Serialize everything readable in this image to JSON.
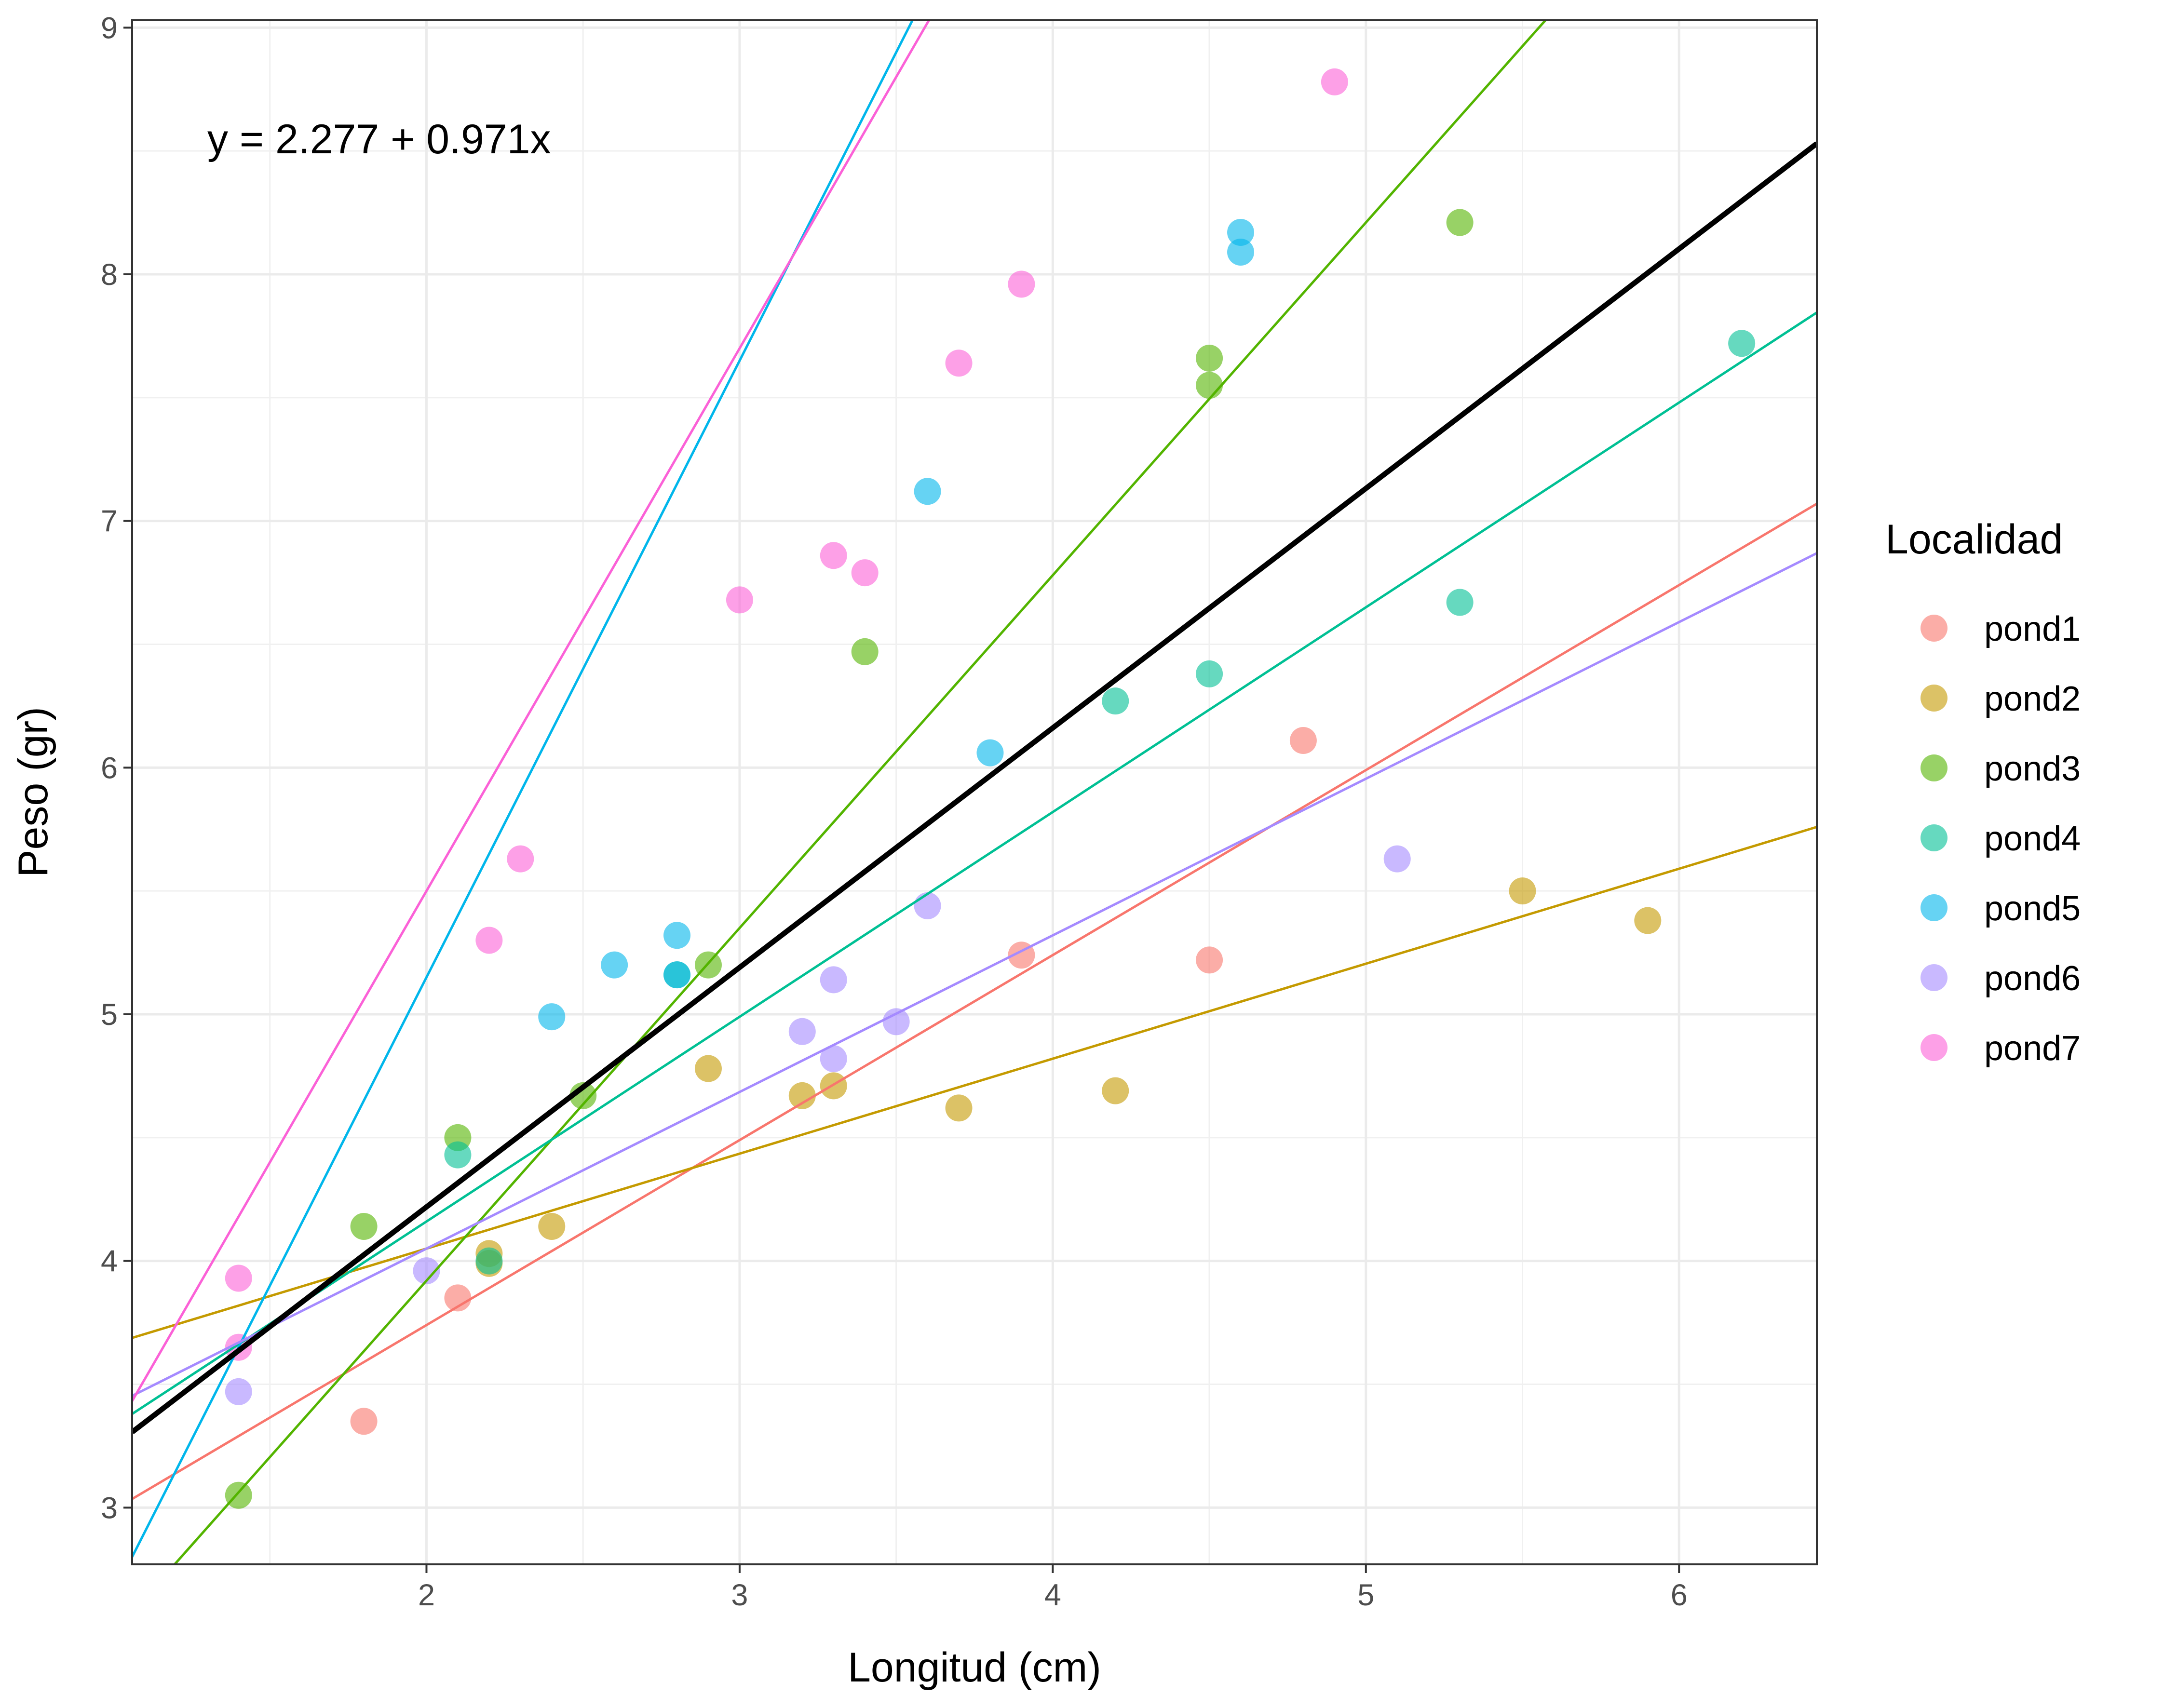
{
  "chart_data": {
    "type": "scatter",
    "xlabel": "Longitud (cm)",
    "ylabel": "Peso (gr)",
    "xlim": [
      1.06,
      6.44
    ],
    "ylim": [
      2.77,
      9.03
    ],
    "x_ticks": [
      2,
      3,
      4,
      5,
      6
    ],
    "y_ticks": [
      3,
      4,
      5,
      6,
      7,
      8,
      9
    ],
    "grid": true,
    "legend_title": "Localidad",
    "legend_position": "right",
    "annotation": "y = 2.277 + 0.971x",
    "overall_fit": {
      "intercept": 2.277,
      "slope": 0.971,
      "color": "#000000"
    },
    "series": [
      {
        "name": "pond1",
        "color": "#F8766D",
        "points": [
          [
            1.8,
            3.35
          ],
          [
            2.1,
            3.85
          ],
          [
            3.9,
            5.24
          ],
          [
            4.5,
            5.22
          ],
          [
            4.8,
            6.11
          ]
        ],
        "fit": {
          "intercept": 2.24,
          "slope": 0.75
        }
      },
      {
        "name": "pond2",
        "color": "#C49A00",
        "points": [
          [
            2.2,
            4.03
          ],
          [
            2.2,
            3.99
          ],
          [
            2.4,
            4.14
          ],
          [
            2.9,
            4.78
          ],
          [
            3.2,
            4.67
          ],
          [
            3.3,
            4.71
          ],
          [
            3.7,
            4.62
          ],
          [
            4.2,
            4.69
          ],
          [
            5.5,
            5.5
          ],
          [
            5.9,
            5.38
          ]
        ],
        "fit": {
          "intercept": 3.28,
          "slope": 0.385
        }
      },
      {
        "name": "pond3",
        "color": "#53B400",
        "points": [
          [
            1.4,
            3.05
          ],
          [
            1.8,
            4.14
          ],
          [
            2.1,
            4.5
          ],
          [
            2.5,
            4.67
          ],
          [
            2.9,
            5.2
          ],
          [
            3.4,
            6.47
          ],
          [
            4.5,
            7.66
          ],
          [
            4.5,
            7.55
          ],
          [
            5.3,
            8.21
          ]
        ],
        "fit": {
          "intercept": 1.06,
          "slope": 1.43
        }
      },
      {
        "name": "pond4",
        "color": "#00C094",
        "points": [
          [
            2.1,
            4.43
          ],
          [
            2.2,
            4.0
          ],
          [
            2.8,
            5.16
          ],
          [
            4.2,
            6.27
          ],
          [
            4.5,
            6.38
          ],
          [
            5.3,
            6.67
          ],
          [
            6.2,
            7.72
          ]
        ],
        "fit": {
          "intercept": 2.5,
          "slope": 0.83
        }
      },
      {
        "name": "pond5",
        "color": "#00B6EB",
        "points": [
          [
            2.4,
            4.99
          ],
          [
            2.6,
            5.2
          ],
          [
            2.8,
            5.32
          ],
          [
            2.8,
            5.16
          ],
          [
            3.6,
            7.12
          ],
          [
            3.8,
            6.06
          ],
          [
            4.6,
            8.17
          ],
          [
            4.6,
            8.09
          ]
        ],
        "fit": {
          "intercept": 0.15,
          "slope": 2.5
        }
      },
      {
        "name": "pond6",
        "color": "#A58AFF",
        "points": [
          [
            1.4,
            3.47
          ],
          [
            2.0,
            3.96
          ],
          [
            3.2,
            4.93
          ],
          [
            3.3,
            5.14
          ],
          [
            3.3,
            4.82
          ],
          [
            3.5,
            4.97
          ],
          [
            3.6,
            5.44
          ],
          [
            5.1,
            5.63
          ]
        ],
        "fit": {
          "intercept": 2.78,
          "slope": 0.635
        }
      },
      {
        "name": "pond7",
        "color": "#FB61D7",
        "points": [
          [
            1.4,
            3.93
          ],
          [
            1.4,
            3.65
          ],
          [
            2.2,
            5.3
          ],
          [
            2.3,
            5.63
          ],
          [
            3.0,
            6.68
          ],
          [
            3.3,
            6.86
          ],
          [
            3.4,
            6.79
          ],
          [
            3.7,
            7.64
          ],
          [
            3.9,
            7.96
          ],
          [
            4.9,
            8.78
          ]
        ],
        "fit": {
          "intercept": 1.1,
          "slope": 2.2
        }
      }
    ]
  }
}
